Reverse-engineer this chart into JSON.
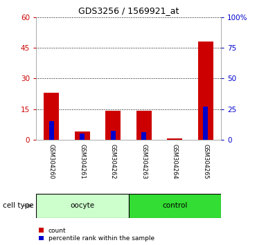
{
  "title": "GDS3256 / 1569921_at",
  "samples": [
    "GSM304260",
    "GSM304261",
    "GSM304262",
    "GSM304263",
    "GSM304264",
    "GSM304265"
  ],
  "count_values": [
    23,
    4,
    14,
    14,
    0.5,
    48
  ],
  "percentile_values": [
    15,
    5,
    7,
    6,
    0,
    27
  ],
  "ylim_left": [
    0,
    60
  ],
  "ylim_right": [
    0,
    100
  ],
  "yticks_left": [
    0,
    15,
    30,
    45,
    60
  ],
  "yticks_right": [
    0,
    25,
    50,
    75,
    100
  ],
  "ytick_labels_right": [
    "0",
    "25",
    "50",
    "75",
    "100%"
  ],
  "left_tick_color": "#cc0000",
  "right_tick_color": "#0000cc",
  "bar_color_red": "#cc0000",
  "bar_color_blue": "#0000cc",
  "oocyte_color_light": "#ccffcc",
  "oocyte_color_dark": "#44dd44",
  "control_color": "#22cc22",
  "cell_type_label": "cell type",
  "legend_count_label": "count",
  "legend_percentile_label": "percentile rank within the sample",
  "bar_width": 0.5,
  "label_bg_color": "#cccccc",
  "fig_width": 3.71,
  "fig_height": 3.54,
  "dpi": 100
}
